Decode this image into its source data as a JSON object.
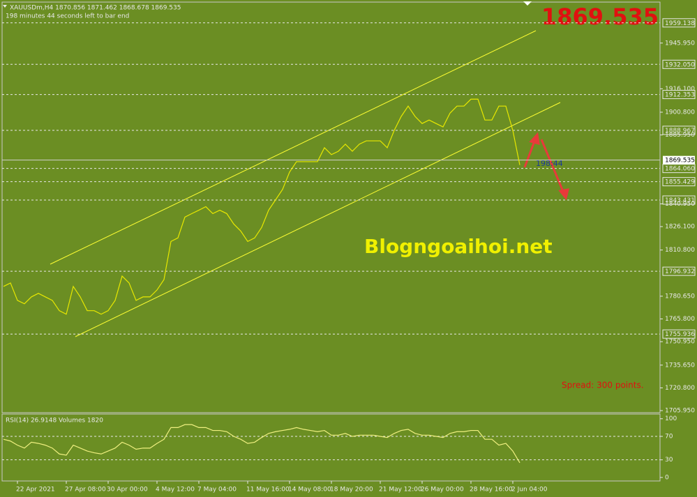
{
  "chart_data": [
    {
      "type": "line",
      "title": "XAUUSDm,H4  1870.856 1871.462 1868.678 1869.535",
      "subtitle": "198 minutes 44 seconds left to bar end",
      "color": "#e8e800",
      "current_price": {
        "value": 1869.535,
        "label": "1869.535"
      },
      "annotations": [
        "Blogngoaihoi.net",
        "Spread: 300 points.",
        "198:44"
      ],
      "categories": [
        null,
        null,
        "22 Apr 2021",
        null,
        null,
        null,
        null,
        null,
        null,
        "27 Apr 08:00",
        null,
        null,
        null,
        null,
        null,
        "30 Apr 00:00",
        null,
        null,
        null,
        null,
        null,
        null,
        "4 May 12:00",
        null,
        null,
        null,
        null,
        null,
        "7 May 04:00",
        null,
        null,
        null,
        null,
        null,
        null,
        "11 May 16:00",
        null,
        null,
        null,
        null,
        null,
        "14 May 08:00",
        null,
        null,
        null,
        null,
        null,
        "18 May 20:00",
        null,
        null,
        null,
        null,
        null,
        null,
        "21 May 12:00",
        null,
        null,
        null,
        null,
        null,
        "26 May 00:00",
        null,
        null,
        null,
        null,
        null,
        null,
        "28 May 16:00",
        null,
        null,
        null,
        null,
        null,
        "2 Jun 04:00",
        null
      ],
      "values": [
        1787.0,
        1789.3,
        1777.9,
        1775.7,
        1780.2,
        1782.5,
        1780.2,
        1777.9,
        1771.2,
        1768.9,
        1787.0,
        1780.2,
        1771.2,
        1771.2,
        1768.9,
        1771.2,
        1777.9,
        1793.8,
        1789.3,
        1777.9,
        1780.2,
        1780.2,
        1784.7,
        1791.5,
        1816.4,
        1818.7,
        1832.3,
        1834.6,
        1836.8,
        1839.1,
        1834.6,
        1836.8,
        1834.6,
        1827.8,
        1823.2,
        1816.4,
        1818.7,
        1825.5,
        1836.8,
        1843.6,
        1850.4,
        1861.7,
        1868.5,
        1868.5,
        1868.5,
        1868.5,
        1877.6,
        1873.1,
        1875.3,
        1879.9,
        1875.3,
        1879.9,
        1882.1,
        1882.1,
        1882.1,
        1877.6,
        1888.9,
        1898.0,
        1904.8,
        1898.0,
        1893.4,
        1895.7,
        1893.4,
        1891.2,
        1900.2,
        1904.8,
        1904.8,
        1909.3,
        1909.3,
        1895.7,
        1895.7,
        1904.8,
        1904.8,
        1888.9,
        1866.3
      ],
      "ylim": [
        1704.6,
        1972.7
      ],
      "yticks": [
        {
          "value": 1945.95,
          "label": "1945.950"
        },
        {
          "value": 1916.1,
          "label": "1916.100"
        },
        {
          "value": 1900.8,
          "label": "1900.800"
        },
        {
          "value": 1885.95,
          "label": "1885.950"
        },
        {
          "value": 1840.95,
          "label": "1840.950"
        },
        {
          "value": 1826.1,
          "label": "1826.100"
        },
        {
          "value": 1810.8,
          "label": "1810.800"
        },
        {
          "value": 1780.65,
          "label": "1780.650"
        },
        {
          "value": 1765.8,
          "label": "1765.800"
        },
        {
          "value": 1750.95,
          "label": "1750.950"
        },
        {
          "value": 1735.65,
          "label": "1735.650"
        },
        {
          "value": 1720.8,
          "label": "1720.800"
        },
        {
          "value": 1705.95,
          "label": "1705.950"
        }
      ],
      "levels": [
        {
          "value": 1959.138,
          "label": "1959.138"
        },
        {
          "value": 1932.05,
          "label": "1932.050"
        },
        {
          "value": 1912.353,
          "label": "1912.353"
        },
        {
          "value": 1888.967,
          "label": "1888.967"
        },
        {
          "value": 1864.06,
          "label": "1864.060"
        },
        {
          "value": 1855.429,
          "label": "1855.429"
        },
        {
          "value": 1843.431,
          "label": "1843.431"
        },
        {
          "value": 1796.932,
          "label": "1796.932"
        },
        {
          "value": 1755.936,
          "label": "1755.936"
        }
      ]
    },
    {
      "type": "line",
      "title": "RSI(14) 26.9148 Volumes 1820",
      "color": "#f0f080",
      "values": [
        65,
        62,
        55,
        50,
        60,
        58,
        55,
        50,
        40,
        38,
        55,
        50,
        45,
        42,
        40,
        45,
        50,
        60,
        55,
        48,
        50,
        50,
        58,
        65,
        85,
        85,
        90,
        90,
        85,
        85,
        80,
        80,
        78,
        70,
        65,
        58,
        60,
        68,
        75,
        78,
        80,
        82,
        85,
        82,
        80,
        78,
        80,
        72,
        72,
        75,
        70,
        72,
        72,
        72,
        70,
        68,
        75,
        80,
        82,
        75,
        72,
        72,
        70,
        68,
        75,
        78,
        78,
        80,
        80,
        65,
        65,
        55,
        58,
        45,
        25
      ],
      "ylim": [
        -6,
        108
      ],
      "yticks": [
        0,
        30,
        70,
        100
      ],
      "levels": [
        30,
        70
      ]
    }
  ]
}
